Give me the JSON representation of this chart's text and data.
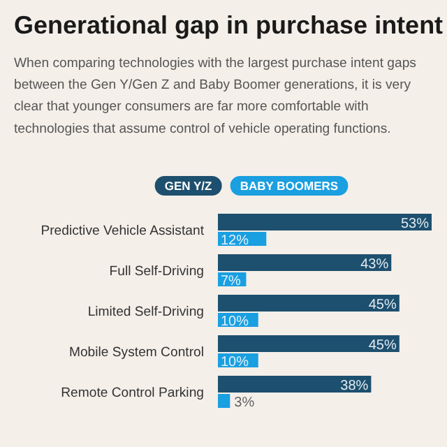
{
  "chart_data": {
    "type": "bar",
    "orientation": "horizontal",
    "title": "Generational gap in purchase intent",
    "subtitle": "When comparing technologies with the largest purchase intent gaps between the Gen Y/Gen Z and Baby Boomer generations, it is very clear that younger consumers are far more comfortable with technologies that assume control of vehicle operating functions.",
    "categories": [
      "Predictive Vehicle Assistant",
      "Full Self-Driving",
      "Limited Self-Driving",
      "Mobile System Control",
      "Remote Control Parking"
    ],
    "series": [
      {
        "name": "GEN Y/Z",
        "color": "#1d4f6e",
        "values": [
          53,
          43,
          45,
          45,
          38
        ],
        "value_labels": [
          "53%",
          "43%",
          "45%",
          "45%",
          "38%"
        ]
      },
      {
        "name": "BABY BOOMERS",
        "color": "#1a9fe0",
        "values": [
          12,
          7,
          10,
          10,
          3
        ],
        "value_labels": [
          "12%",
          "7%",
          "10%",
          "10%",
          "3%"
        ]
      }
    ],
    "legend": "top"
  }
}
